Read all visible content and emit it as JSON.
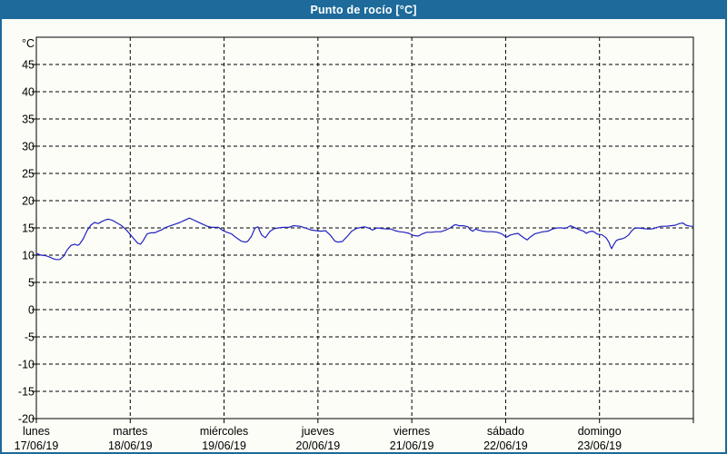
{
  "title": "Punto de rocío [°C]",
  "colors": {
    "titlebar_bg": "#1d6a9b",
    "titlebar_text": "#ffffff",
    "window_border": "#1d6a9b",
    "background": "#fcfdf7",
    "grid": "#000000",
    "axis_text": "#000000",
    "line": "#2222c0"
  },
  "chart_data": {
    "type": "line",
    "title": "Punto de rocío [°C]",
    "y_unit": "°C",
    "y_min": -20,
    "y_max": 50,
    "y_tick_step": 5,
    "y_tick_labels": [
      45,
      40,
      35,
      30,
      25,
      20,
      15,
      10,
      5,
      0,
      -5,
      -10,
      -15,
      -20
    ],
    "grid": "dashed",
    "legend": "none",
    "x_range_days": [
      0,
      7
    ],
    "x_days": [
      {
        "name": "lunes",
        "date": "17/06/19"
      },
      {
        "name": "martes",
        "date": "18/06/19"
      },
      {
        "name": "miércoles",
        "date": "19/06/19"
      },
      {
        "name": "jueves",
        "date": "20/06/19"
      },
      {
        "name": "viernes",
        "date": "21/06/19"
      },
      {
        "name": "sábado",
        "date": "22/06/19"
      },
      {
        "name": "domingo",
        "date": "23/06/19"
      }
    ],
    "series": [
      {
        "name": "Punto de rocío",
        "color": "#2222c0",
        "points": [
          [
            0,
            10.3
          ],
          [
            0.05,
            10
          ],
          [
            0.1,
            9.9
          ],
          [
            0.15,
            9.6
          ],
          [
            0.17,
            9.4
          ],
          [
            0.21,
            9.2
          ],
          [
            0.25,
            9.2
          ],
          [
            0.29,
            9.8
          ],
          [
            0.33,
            11
          ],
          [
            0.37,
            11.8
          ],
          [
            0.41,
            12
          ],
          [
            0.44,
            11.8
          ],
          [
            0.46,
            12
          ],
          [
            0.5,
            13
          ],
          [
            0.54,
            14.5
          ],
          [
            0.58,
            15.5
          ],
          [
            0.62,
            16
          ],
          [
            0.66,
            15.8
          ],
          [
            0.7,
            16.2
          ],
          [
            0.74,
            16.5
          ],
          [
            0.77,
            16.6
          ],
          [
            0.81,
            16.4
          ],
          [
            0.85,
            16
          ],
          [
            0.9,
            15.5
          ],
          [
            0.95,
            14.8
          ],
          [
            1,
            13.8
          ],
          [
            1.04,
            13
          ],
          [
            1.08,
            12.2
          ],
          [
            1.11,
            12
          ],
          [
            1.14,
            12.7
          ],
          [
            1.18,
            13.9
          ],
          [
            1.22,
            14.1
          ],
          [
            1.26,
            14.1
          ],
          [
            1.3,
            14.4
          ],
          [
            1.34,
            14.7
          ],
          [
            1.38,
            15.1
          ],
          [
            1.43,
            15.4
          ],
          [
            1.48,
            15.7
          ],
          [
            1.53,
            16
          ],
          [
            1.58,
            16.4
          ],
          [
            1.63,
            16.8
          ],
          [
            1.67,
            16.5
          ],
          [
            1.72,
            16.1
          ],
          [
            1.77,
            15.7
          ],
          [
            1.82,
            15.3
          ],
          [
            1.87,
            15.1
          ],
          [
            1.94,
            15.1
          ],
          [
            1.98,
            14.6
          ],
          [
            2.03,
            14.2
          ],
          [
            2.08,
            13.9
          ],
          [
            2.13,
            13.2
          ],
          [
            2.18,
            12.6
          ],
          [
            2.22,
            12.4
          ],
          [
            2.25,
            12.5
          ],
          [
            2.29,
            13.4
          ],
          [
            2.33,
            15
          ],
          [
            2.36,
            15.2
          ],
          [
            2.4,
            13.7
          ],
          [
            2.44,
            13.2
          ],
          [
            2.49,
            14.4
          ],
          [
            2.54,
            14.9
          ],
          [
            2.58,
            15
          ],
          [
            2.63,
            15.1
          ],
          [
            2.69,
            15.1
          ],
          [
            2.74,
            15.4
          ],
          [
            2.81,
            15.3
          ],
          [
            2.88,
            14.9
          ],
          [
            2.93,
            14.6
          ],
          [
            2.98,
            14.5
          ],
          [
            3.03,
            14.4
          ],
          [
            3.08,
            14.5
          ],
          [
            3.13,
            13.7
          ],
          [
            3.18,
            12.6
          ],
          [
            3.21,
            12.4
          ],
          [
            3.26,
            12.5
          ],
          [
            3.31,
            13.4
          ],
          [
            3.36,
            14.4
          ],
          [
            3.41,
            14.9
          ],
          [
            3.46,
            15.1
          ],
          [
            3.5,
            15.2
          ],
          [
            3.55,
            14.9
          ],
          [
            3.58,
            14.6
          ],
          [
            3.63,
            15
          ],
          [
            3.68,
            14.9
          ],
          [
            3.73,
            14.8
          ],
          [
            3.78,
            14.8
          ],
          [
            3.82,
            14.5
          ],
          [
            3.87,
            14.3
          ],
          [
            3.92,
            14.2
          ],
          [
            3.97,
            14
          ],
          [
            4.02,
            13.6
          ],
          [
            4.07,
            13.5
          ],
          [
            4.11,
            13.9
          ],
          [
            4.16,
            14.2
          ],
          [
            4.21,
            14.2
          ],
          [
            4.26,
            14.3
          ],
          [
            4.31,
            14.3
          ],
          [
            4.36,
            14.6
          ],
          [
            4.41,
            15
          ],
          [
            4.45,
            15.5
          ],
          [
            4.47,
            15.6
          ],
          [
            4.5,
            15.4
          ],
          [
            4.55,
            15.4
          ],
          [
            4.6,
            15.2
          ],
          [
            4.62,
            14.7
          ],
          [
            4.65,
            14.4
          ],
          [
            4.68,
            14.8
          ],
          [
            4.71,
            14.6
          ],
          [
            4.76,
            14.4
          ],
          [
            4.81,
            14.3
          ],
          [
            4.86,
            14.3
          ],
          [
            4.91,
            14.2
          ],
          [
            4.96,
            13.9
          ],
          [
            4.99,
            13.5
          ],
          [
            5.01,
            13.3
          ],
          [
            5.05,
            13.7
          ],
          [
            5.1,
            13.9
          ],
          [
            5.13,
            14
          ],
          [
            5.16,
            13.6
          ],
          [
            5.2,
            13.1
          ],
          [
            5.23,
            12.8
          ],
          [
            5.26,
            13.3
          ],
          [
            5.31,
            13.9
          ],
          [
            5.35,
            14.1
          ],
          [
            5.4,
            14.3
          ],
          [
            5.45,
            14.4
          ],
          [
            5.5,
            14.8
          ],
          [
            5.55,
            15
          ],
          [
            5.6,
            15
          ],
          [
            5.63,
            14.9
          ],
          [
            5.66,
            15.1
          ],
          [
            5.69,
            15.4
          ],
          [
            5.73,
            15.1
          ],
          [
            5.78,
            14.7
          ],
          [
            5.83,
            14.4
          ],
          [
            5.86,
            14
          ],
          [
            5.89,
            14.3
          ],
          [
            5.92,
            14.4
          ],
          [
            5.95,
            14.2
          ],
          [
            5.97,
            13.9
          ],
          [
            6,
            13.8
          ],
          [
            6.03,
            13.7
          ],
          [
            6.07,
            13.2
          ],
          [
            6.1,
            12.4
          ],
          [
            6.12,
            11.5
          ],
          [
            6.13,
            11.2
          ],
          [
            6.15,
            11.9
          ],
          [
            6.18,
            12.7
          ],
          [
            6.21,
            12.9
          ],
          [
            6.24,
            13
          ],
          [
            6.27,
            13.2
          ],
          [
            6.31,
            13.7
          ],
          [
            6.34,
            14.4
          ],
          [
            6.37,
            14.9
          ],
          [
            6.41,
            15
          ],
          [
            6.46,
            14.9
          ],
          [
            6.51,
            14.8
          ],
          [
            6.55,
            14.8
          ],
          [
            6.58,
            14.9
          ],
          [
            6.61,
            15.1
          ],
          [
            6.66,
            15.3
          ],
          [
            6.71,
            15.3
          ],
          [
            6.76,
            15.4
          ],
          [
            6.81,
            15.5
          ],
          [
            6.85,
            15.8
          ],
          [
            6.89,
            15.9
          ],
          [
            6.92,
            15.5
          ],
          [
            6.97,
            15.3
          ],
          [
            7,
            15.3
          ]
        ]
      }
    ]
  }
}
